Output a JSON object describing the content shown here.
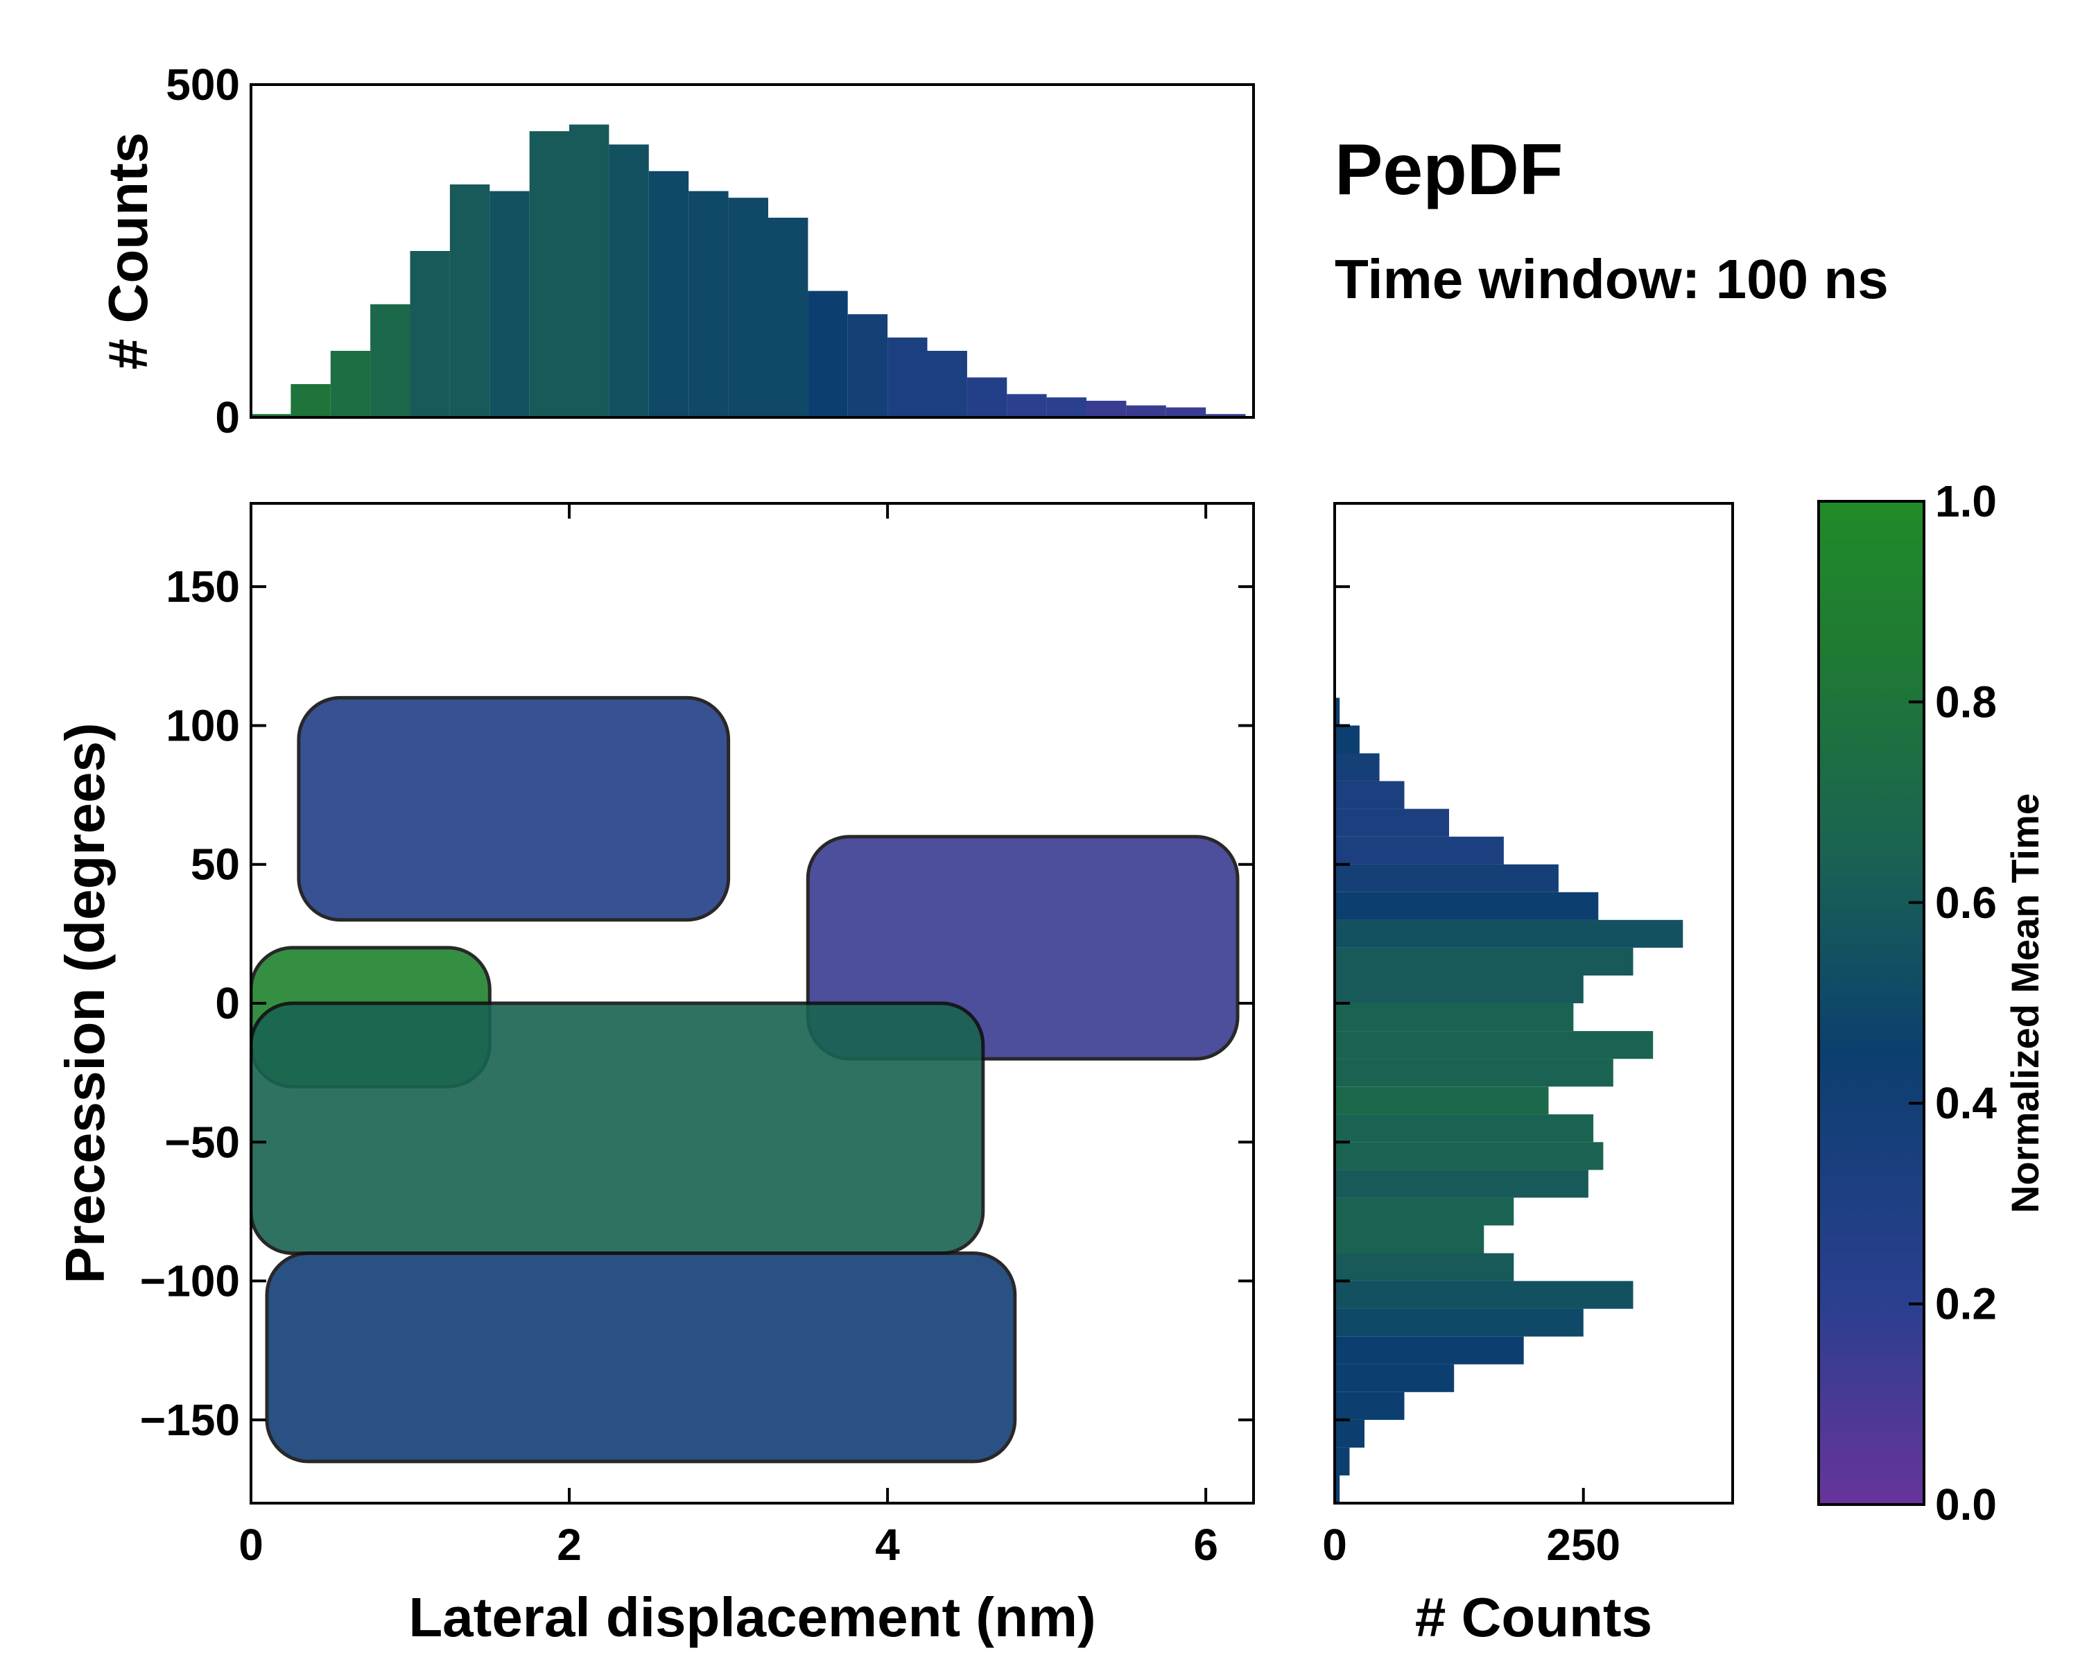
{
  "chart_data": {
    "type": "heatmap",
    "title": "PepDF",
    "subtitle": "Time window: 100 ns",
    "main": {
      "xlabel": "Lateral displacement (nm)",
      "ylabel": "Precession (degrees)",
      "xlim": [
        0,
        6.3
      ],
      "ylim": [
        -180,
        180
      ],
      "xticks": [
        "0",
        "2",
        "4",
        "6"
      ],
      "xtick_values": [
        0,
        2,
        4,
        6
      ],
      "yticks": [
        "150",
        "100",
        "50",
        "0",
        "−50",
        "−100",
        "−150"
      ],
      "ytick_values": [
        150,
        100,
        50,
        0,
        -50,
        -100,
        -150
      ],
      "value_label": "Normalized Mean Time",
      "region_notes": [
        {
          "x": [
            0.3,
            3.0
          ],
          "y": [
            30,
            110
          ],
          "mean_time": 0.25
        },
        {
          "x": [
            3.5,
            6.2
          ],
          "y": [
            -20,
            60
          ],
          "mean_time": 0.15
        },
        {
          "x": [
            0.0,
            1.5
          ],
          "y": [
            -30,
            20
          ],
          "mean_time": 0.9
        },
        {
          "x": [
            0.0,
            4.6
          ],
          "y": [
            -90,
            0
          ],
          "mean_time": 0.6
        },
        {
          "x": [
            0.1,
            4.8
          ],
          "y": [
            -165,
            -90
          ],
          "mean_time": 0.35
        }
      ]
    },
    "top_histogram": {
      "type": "bar",
      "ylabel": "# Counts",
      "xlim": [
        0,
        6.3
      ],
      "ylim": [
        0,
        500
      ],
      "yticks": [
        "500",
        "0"
      ],
      "ytick_values": [
        500,
        0
      ],
      "x": [
        0.0,
        0.25,
        0.5,
        0.75,
        1.0,
        1.25,
        1.5,
        1.75,
        2.0,
        2.25,
        2.5,
        2.75,
        3.0,
        3.25,
        3.5,
        3.75,
        4.0,
        4.25,
        4.5,
        4.75,
        5.0,
        5.25,
        5.5,
        5.75,
        6.0,
        6.25
      ],
      "values": [
        5,
        50,
        100,
        170,
        250,
        350,
        340,
        430,
        440,
        410,
        370,
        340,
        330,
        300,
        190,
        155,
        120,
        100,
        60,
        35,
        30,
        25,
        18,
        15,
        5,
        0
      ],
      "mean_time": [
        0.75,
        0.75,
        0.7,
        0.65,
        0.55,
        0.55,
        0.5,
        0.55,
        0.55,
        0.5,
        0.45,
        0.45,
        0.45,
        0.45,
        0.4,
        0.35,
        0.3,
        0.3,
        0.25,
        0.2,
        0.2,
        0.15,
        0.15,
        0.15,
        0.15,
        0.15
      ]
    },
    "right_histogram": {
      "type": "bar",
      "xlabel": "# Counts",
      "xlim": [
        0,
        400
      ],
      "xticks": [
        "0",
        "250"
      ],
      "xtick_values": [
        0,
        250
      ],
      "y": [
        110,
        100,
        90,
        80,
        70,
        60,
        50,
        40,
        30,
        20,
        10,
        0,
        -10,
        -20,
        -30,
        -40,
        -50,
        -60,
        -70,
        -80,
        -90,
        -100,
        -110,
        -120,
        -130,
        -140,
        -150,
        -160,
        -170,
        -180
      ],
      "values": [
        5,
        25,
        45,
        70,
        115,
        170,
        225,
        265,
        350,
        300,
        250,
        240,
        320,
        280,
        215,
        260,
        270,
        255,
        180,
        150,
        180,
        300,
        250,
        190,
        120,
        70,
        30,
        15,
        5,
        0
      ],
      "mean_time": [
        0.4,
        0.4,
        0.35,
        0.3,
        0.3,
        0.3,
        0.35,
        0.4,
        0.5,
        0.55,
        0.55,
        0.6,
        0.6,
        0.6,
        0.65,
        0.6,
        0.6,
        0.55,
        0.6,
        0.6,
        0.55,
        0.5,
        0.45,
        0.4,
        0.4,
        0.4,
        0.4,
        0.4,
        0.4,
        0.4
      ]
    },
    "colorbar": {
      "label": "Normalized Mean Time",
      "range": [
        0.0,
        1.0
      ],
      "ticks": [
        "1.0",
        "0.8",
        "0.6",
        "0.4",
        "0.2",
        "0.0"
      ],
      "tick_values": [
        1.0,
        0.8,
        0.6,
        0.4,
        0.2,
        0.0
      ],
      "colors": [
        "#67349b",
        "#2b3f8f",
        "#0c3f6f",
        "#1a6352",
        "#1f7a33",
        "#208b28"
      ]
    }
  }
}
